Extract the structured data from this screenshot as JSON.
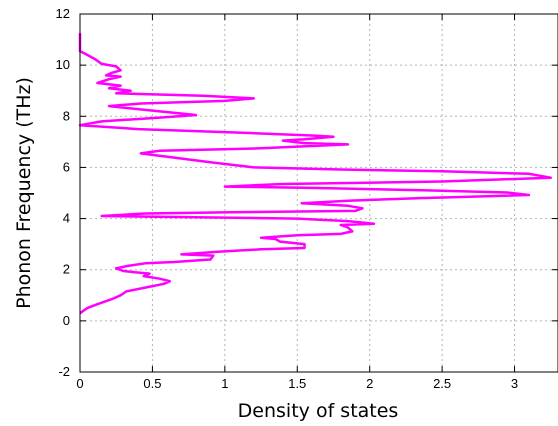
{
  "chart_data": {
    "type": "line",
    "orientation": "dos-vertical",
    "xlabel": "Density of states",
    "ylabel": "Phonon Frequency (THz)",
    "xlim": [
      0,
      3.3
    ],
    "ylim": [
      -2,
      12
    ],
    "xticks": [
      0,
      0.5,
      1,
      1.5,
      2,
      2.5,
      3
    ],
    "xtick_labels": [
      "0",
      "0.5",
      "1",
      "1.5",
      "2",
      "2.5",
      "3"
    ],
    "yticks": [
      -2,
      0,
      2,
      4,
      6,
      8,
      10,
      12
    ],
    "ytick_labels": [
      "-2",
      "0",
      "2",
      "4",
      "6",
      "8",
      "10",
      "12"
    ],
    "grid": true,
    "series": [
      {
        "color": "#ff00ff",
        "points": [
          [
            0.0,
            0.3
          ],
          [
            0.05,
            0.5
          ],
          [
            0.12,
            0.65
          ],
          [
            0.22,
            0.85
          ],
          [
            0.28,
            1.0
          ],
          [
            0.32,
            1.15
          ],
          [
            0.45,
            1.3
          ],
          [
            0.58,
            1.45
          ],
          [
            0.62,
            1.55
          ],
          [
            0.55,
            1.65
          ],
          [
            0.44,
            1.75
          ],
          [
            0.48,
            1.85
          ],
          [
            0.38,
            1.9
          ],
          [
            0.3,
            1.95
          ],
          [
            0.25,
            2.05
          ],
          [
            0.33,
            2.15
          ],
          [
            0.45,
            2.25
          ],
          [
            0.65,
            2.3
          ],
          [
            0.9,
            2.4
          ],
          [
            0.92,
            2.55
          ],
          [
            0.7,
            2.6
          ],
          [
            0.95,
            2.7
          ],
          [
            1.25,
            2.8
          ],
          [
            1.55,
            2.85
          ],
          [
            1.55,
            3.0
          ],
          [
            1.38,
            3.1
          ],
          [
            1.35,
            3.2
          ],
          [
            1.25,
            3.25
          ],
          [
            1.5,
            3.35
          ],
          [
            1.8,
            3.4
          ],
          [
            1.88,
            3.5
          ],
          [
            1.85,
            3.65
          ],
          [
            1.8,
            3.75
          ],
          [
            2.03,
            3.8
          ],
          [
            1.85,
            3.9
          ],
          [
            1.5,
            4.0
          ],
          [
            0.8,
            4.05
          ],
          [
            0.15,
            4.1
          ],
          [
            0.45,
            4.2
          ],
          [
            1.05,
            4.25
          ],
          [
            1.9,
            4.3
          ],
          [
            1.95,
            4.4
          ],
          [
            1.85,
            4.5
          ],
          [
            1.53,
            4.6
          ],
          [
            1.85,
            4.7
          ],
          [
            2.35,
            4.8
          ],
          [
            3.1,
            4.92
          ],
          [
            2.95,
            5.02
          ],
          [
            2.4,
            5.1
          ],
          [
            1.6,
            5.2
          ],
          [
            1.0,
            5.25
          ],
          [
            1.4,
            5.35
          ],
          [
            2.5,
            5.45
          ],
          [
            3.25,
            5.6
          ],
          [
            3.1,
            5.75
          ],
          [
            2.5,
            5.85
          ],
          [
            1.8,
            5.92
          ],
          [
            1.2,
            6.0
          ],
          [
            0.9,
            6.2
          ],
          [
            0.42,
            6.55
          ],
          [
            0.55,
            6.65
          ],
          [
            1.25,
            6.75
          ],
          [
            1.85,
            6.9
          ],
          [
            1.55,
            6.95
          ],
          [
            1.4,
            7.05
          ],
          [
            1.55,
            7.1
          ],
          [
            1.75,
            7.2
          ],
          [
            1.6,
            7.25
          ],
          [
            1.15,
            7.35
          ],
          [
            0.4,
            7.5
          ],
          [
            0.0,
            7.65
          ],
          [
            0.15,
            7.8
          ],
          [
            0.55,
            7.95
          ],
          [
            0.8,
            8.05
          ],
          [
            0.45,
            8.25
          ],
          [
            0.2,
            8.4
          ],
          [
            0.42,
            8.5
          ],
          [
            1.0,
            8.6
          ],
          [
            1.2,
            8.7
          ],
          [
            0.85,
            8.8
          ],
          [
            0.25,
            8.9
          ],
          [
            0.35,
            9.0
          ],
          [
            0.2,
            9.1
          ],
          [
            0.28,
            9.2
          ],
          [
            0.12,
            9.3
          ],
          [
            0.2,
            9.45
          ],
          [
            0.28,
            9.55
          ],
          [
            0.18,
            9.6
          ],
          [
            0.22,
            9.7
          ],
          [
            0.28,
            9.8
          ],
          [
            0.25,
            9.95
          ],
          [
            0.15,
            10.05
          ],
          [
            0.1,
            10.25
          ],
          [
            0.05,
            10.4
          ],
          [
            0.0,
            10.55
          ],
          [
            0.0,
            11.25
          ]
        ]
      }
    ]
  }
}
